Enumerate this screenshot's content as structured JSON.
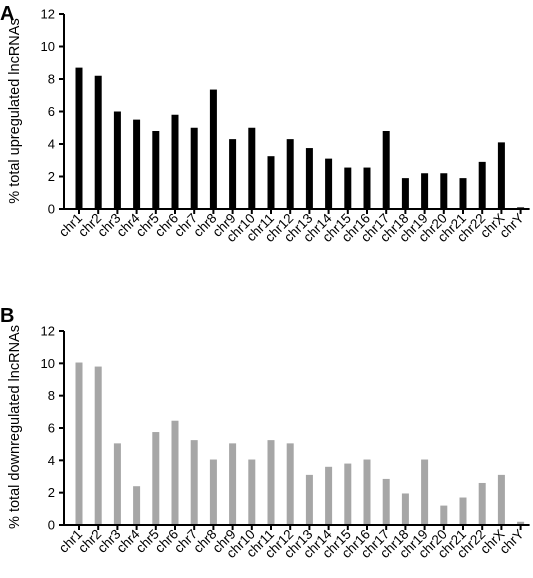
{
  "chart_data": [
    {
      "type": "bar",
      "panel": "A",
      "ylabel": "% total upregulated lncRNAs",
      "xlabel": "",
      "ylim": [
        0,
        12
      ],
      "yticks": [
        0,
        2,
        4,
        6,
        8,
        10,
        12
      ],
      "color": "#000000",
      "categories": [
        "chr1",
        "chr2",
        "chr3",
        "chr4",
        "chr5",
        "chr6",
        "chr7",
        "chr8",
        "chr9",
        "chr10",
        "chr11",
        "chr12",
        "chr13",
        "chr14",
        "chr15",
        "chr16",
        "chr17",
        "chr18",
        "chr19",
        "chr20",
        "chr21",
        "chr22",
        "chrX",
        "chrY"
      ],
      "values": [
        8.7,
        8.2,
        6.0,
        5.5,
        4.8,
        5.8,
        5.0,
        7.35,
        4.3,
        5.0,
        3.25,
        4.3,
        3.75,
        3.1,
        2.55,
        2.55,
        4.8,
        1.9,
        2.2,
        2.2,
        1.9,
        2.9,
        4.1,
        0.1
      ]
    },
    {
      "type": "bar",
      "panel": "B",
      "ylabel": "% total downregulated lncRNAs",
      "xlabel": "",
      "ylim": [
        0,
        12
      ],
      "yticks": [
        0,
        2,
        4,
        6,
        8,
        10,
        12
      ],
      "color": "#a6a6a6",
      "categories": [
        "chr1",
        "chr2",
        "chr3",
        "chr4",
        "chr5",
        "chr6",
        "chr7",
        "chr8",
        "chr9",
        "chr10",
        "chr11",
        "chr12",
        "chr13",
        "chr14",
        "chr15",
        "chr16",
        "chr17",
        "chr18",
        "chr19",
        "chr20",
        "chr21",
        "chr22",
        "chrX",
        "chrY"
      ],
      "values": [
        10.05,
        9.8,
        5.05,
        2.4,
        5.75,
        6.45,
        5.25,
        4.05,
        5.05,
        4.05,
        5.25,
        5.05,
        3.1,
        3.6,
        3.8,
        4.05,
        2.85,
        1.95,
        4.05,
        1.2,
        1.7,
        2.6,
        3.1,
        0.2
      ]
    }
  ]
}
